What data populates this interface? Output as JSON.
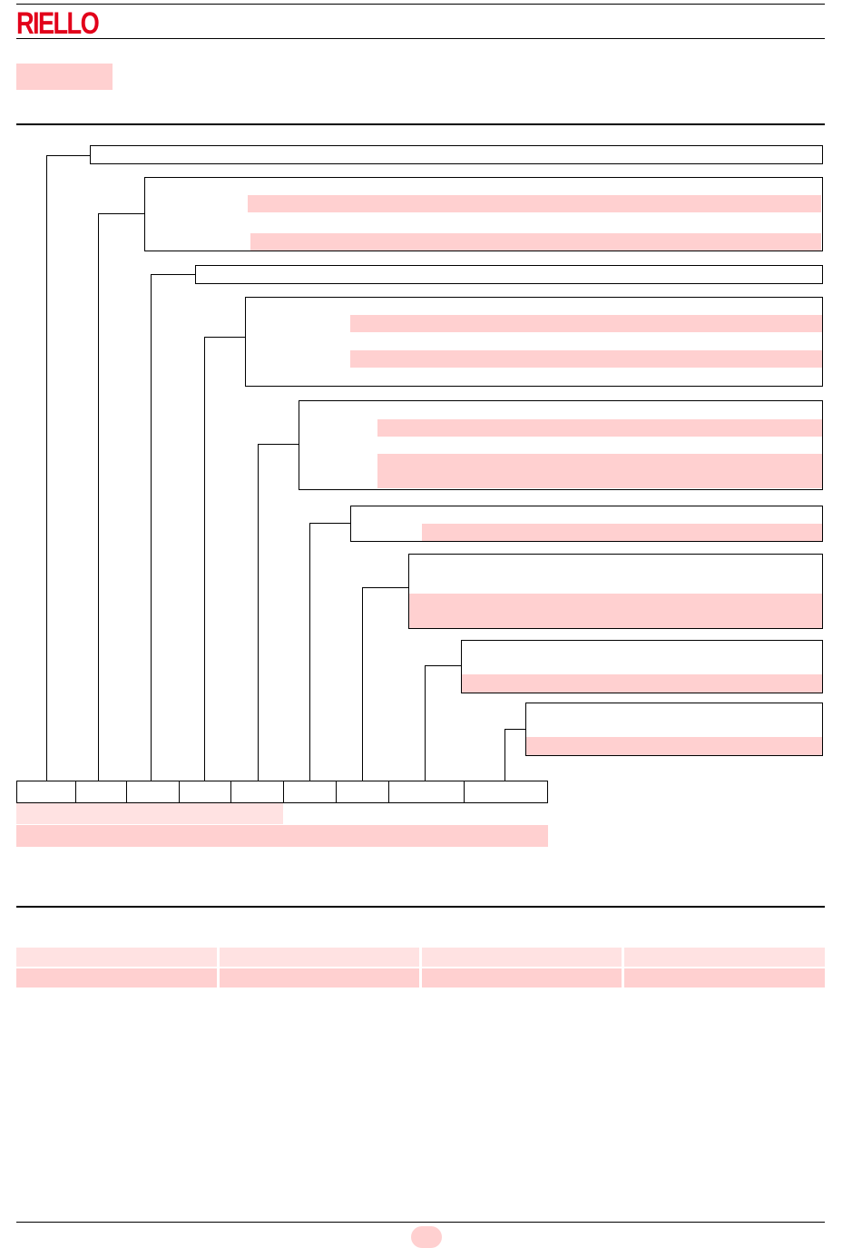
{
  "header": {
    "brand": "RIELLO"
  },
  "colors": {
    "brand": "#e2001a",
    "highlight": "#ffd0d0",
    "highlight_light": "#ffe2e2",
    "line": "#000000"
  },
  "icons": {
    "page_number_badge": "pill-shape"
  }
}
